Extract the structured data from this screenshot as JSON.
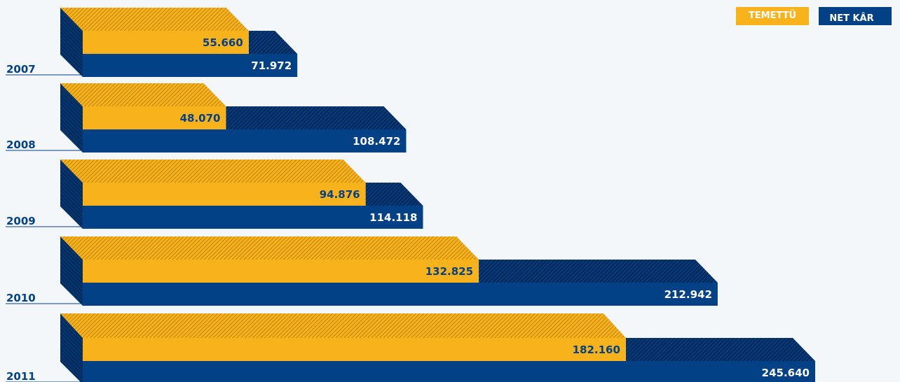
{
  "legend": {
    "dividend_label": "TEMETTÜ",
    "net_profit_label": "NET KÂR",
    "net_profit_marker": "(*)"
  },
  "colors": {
    "dividend": "#f8b21c",
    "dividend_dark": "#c78a00",
    "net_profit": "#034187",
    "net_profit_dark": "#022a5c",
    "background": "#f3f7fa",
    "year_label": "#034187"
  },
  "chart_data": {
    "type": "bar",
    "orientation": "horizontal",
    "style": "3d",
    "categories": [
      "2007",
      "2008",
      "2009",
      "2010",
      "2011"
    ],
    "series": [
      {
        "name": "TEMETTÜ",
        "values": [
          55660,
          48070,
          94876,
          132825,
          182160
        ],
        "labels": [
          "55.660",
          "48.070",
          "94.876",
          "132.825",
          "182.160"
        ]
      },
      {
        "name": "NET KÂR(*)",
        "values": [
          71972,
          108472,
          114118,
          212942,
          245640
        ],
        "labels": [
          "71.972",
          "108.472",
          "114.118",
          "212.942",
          "245.640"
        ]
      }
    ],
    "legend_position": "top-right",
    "grid": false
  }
}
